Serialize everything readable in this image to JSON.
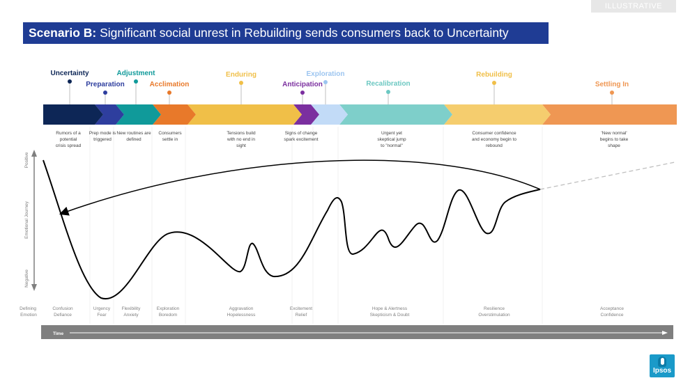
{
  "illustrative_label": "ILLUSTRATIVE",
  "title": {
    "bold": "Scenario B:",
    "rest": " Significant social unrest in Rebuilding sends consumers back to Uncertainty"
  },
  "colors": {
    "title_bg": "#1f3c94",
    "time_bar": "#7f7f7f",
    "curve": "#000000",
    "dashed": "#bfbfbf"
  },
  "phases": [
    {
      "name": "Uncertainty",
      "color": "#0d2656",
      "label_color": "#0d2656",
      "description": "Rumors of a potential crisis spread",
      "emotion": "Confusion Defiance"
    },
    {
      "name": "Preparation",
      "color": "#2e3e9e",
      "label_color": "#2e3e9e",
      "description": "Prep mode is triggered",
      "emotion": "Urgency Fear"
    },
    {
      "name": "Adjustment",
      "color": "#109a9a",
      "label_color": "#109a9a",
      "description": "New routines are defined",
      "emotion": "Flexibility Anxiety"
    },
    {
      "name": "Acclimation",
      "color": "#e8792a",
      "label_color": "#e8792a",
      "description": "Consumers settle in",
      "emotion": "Exploration Boredom"
    },
    {
      "name": "Enduring",
      "color": "#f0bf48",
      "label_color": "#f0bf48",
      "description": "Tensions build with no end in sight",
      "emotion": "Aggravation Hopelessness"
    },
    {
      "name": "Anticipation",
      "color": "#7b2f9f",
      "label_color": "#7b2f9f",
      "description": "Signs of change spark excitement",
      "emotion": "Excitement Relief"
    },
    {
      "name": "Exploration",
      "color": "#c2dbf7",
      "label_color": "#9cc5f0",
      "description": "",
      "emotion": ""
    },
    {
      "name": "Recalibration",
      "color": "#7ecfca",
      "label_color": "#6cc8c2",
      "description": "Urgent yet skeptical jump to \"normal\"",
      "emotion": "Hope & Alertness Skepticism & Doubt"
    },
    {
      "name": "Rebuilding",
      "color": "#f5cd6e",
      "label_color": "#f0bf48",
      "description": "Consumer confidence and economy begin to rebound",
      "emotion": "Resilience Overstimulation"
    },
    {
      "name": "Settling In",
      "color": "#ef9753",
      "label_color": "#ef9753",
      "description": "'New normal' begins to take shape",
      "emotion": "Acceptance Confidence"
    }
  ],
  "axis": {
    "positive": "Positive",
    "negative": "Negative",
    "journey": "Emotional Journey"
  },
  "defining_emotion_label": "Defining Emotion",
  "time_label": "Time",
  "logo_text": "Ipsos"
}
